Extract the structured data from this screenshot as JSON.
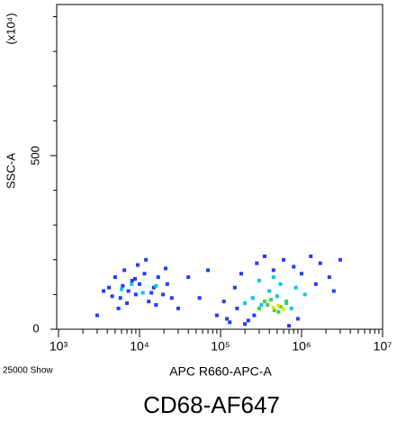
{
  "chart_data": {
    "type": "scatter",
    "title": "CD68-AF647",
    "x_label": "APC R660-APC-A",
    "y_label": "SSC-A",
    "y_multiplier": "(x10⁴)",
    "event_note": "25000 Show",
    "xscale": "log",
    "xlim": [
      1000,
      10000000
    ],
    "xticks": [
      {
        "value": 1000,
        "label": "10³"
      },
      {
        "value": 10000,
        "label": "10⁴"
      },
      {
        "value": 100000,
        "label": "10⁵"
      },
      {
        "value": 1000000,
        "label": "10⁶"
      },
      {
        "value": 10000000,
        "label": "10⁷"
      }
    ],
    "xminorticks": [
      2000,
      3000,
      4000,
      5000,
      6000,
      7000,
      8000,
      9000,
      20000,
      30000,
      40000,
      50000,
      60000,
      70000,
      80000,
      90000,
      200000,
      300000,
      400000,
      500000,
      600000,
      700000,
      800000,
      900000,
      2000000,
      3000000,
      4000000,
      5000000,
      6000000,
      7000000,
      8000000,
      9000000
    ],
    "ylim": [
      0,
      935
    ],
    "yticks": [
      0,
      500
    ],
    "yminorticks": [
      100,
      200,
      300,
      400,
      600,
      700,
      800,
      900
    ],
    "series": [
      {
        "color": "#1f3cff",
        "x": [
          4200,
          5000,
          5800,
          6500,
          7300,
          8100,
          9000,
          10000,
          11500,
          13000,
          15000,
          17000,
          19500,
          22000,
          25000,
          5500,
          7000,
          9500,
          12000,
          16000,
          21000,
          4600,
          6200,
          8800,
          14000,
          3000,
          3600,
          30000,
          40000,
          55000,
          70000,
          90000,
          120000,
          150000,
          180000,
          220000,
          280000,
          350000,
          450000,
          600000,
          800000,
          1000000,
          1300000,
          1700000,
          2200000,
          3000000,
          110000,
          160000,
          260000,
          900000,
          1500000,
          2500000,
          130000,
          200000,
          700000
        ],
        "values": [
          120,
          150,
          90,
          170,
          110,
          140,
          100,
          130,
          160,
          80,
          120,
          150,
          100,
          130,
          90,
          60,
          75,
          185,
          200,
          70,
          175,
          95,
          125,
          145,
          105,
          40,
          110,
          60,
          150,
          90,
          170,
          40,
          30,
          120,
          160,
          25,
          190,
          210,
          170,
          200,
          180,
          160,
          210,
          190,
          150,
          200,
          80,
          60,
          40,
          30,
          130,
          110,
          20,
          15,
          10
        ]
      },
      {
        "color": "#00c8e6",
        "x": [
          6000,
          8000,
          11000,
          16000,
          250000,
          320000,
          400000,
          500000,
          650000,
          850000,
          1100000,
          300000,
          550000,
          750000,
          200000,
          450000
        ],
        "values": [
          115,
          130,
          105,
          125,
          90,
          70,
          110,
          95,
          80,
          120,
          100,
          140,
          130,
          60,
          75,
          150
        ]
      },
      {
        "color": "#40d040",
        "x": [
          300000,
          380000,
          460000,
          550000,
          650000,
          420000,
          520000,
          350000
        ],
        "values": [
          60,
          70,
          55,
          65,
          75,
          85,
          50,
          80
        ]
      },
      {
        "color": "#e8e000",
        "x": [
          450000,
          520000,
          600000
        ],
        "values": [
          62,
          68,
          58
        ]
      }
    ]
  }
}
